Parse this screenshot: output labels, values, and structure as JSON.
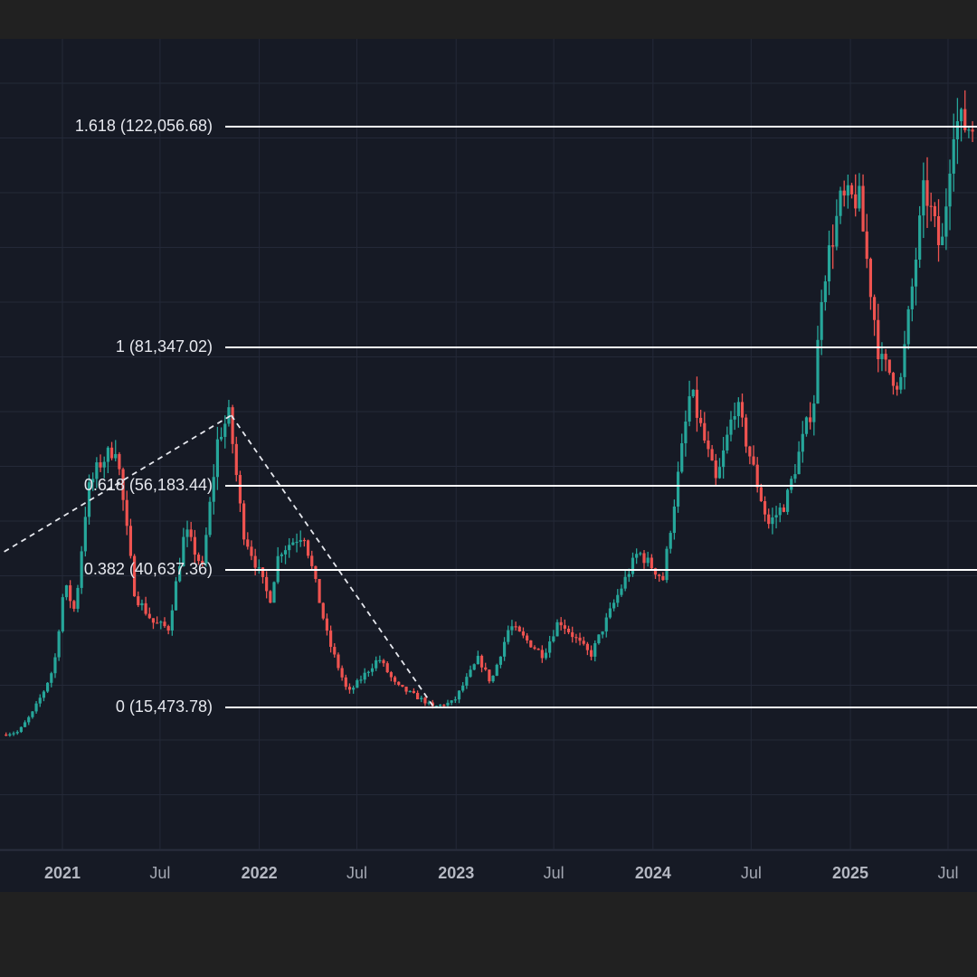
{
  "chart_data": {
    "type": "candlestick",
    "title": "",
    "xlabel": "",
    "ylabel": "",
    "x_range": [
      "2020-09-15",
      "2025-08-15"
    ],
    "y_range_approx": [
      6000,
      140000
    ],
    "grid": true,
    "colors": {
      "up": "#26a69a",
      "down": "#ef5350",
      "background": "#161a25",
      "fib_line": "#ffffff",
      "grid": "#242938"
    },
    "x_ticks": [
      {
        "label": "2021",
        "date": "2021-01-01",
        "major": true
      },
      {
        "label": "Jul",
        "date": "2021-07-01",
        "major": false
      },
      {
        "label": "2022",
        "date": "2022-01-01",
        "major": true
      },
      {
        "label": "Jul",
        "date": "2022-07-01",
        "major": false
      },
      {
        "label": "2023",
        "date": "2023-01-01",
        "major": true
      },
      {
        "label": "Jul",
        "date": "2023-07-01",
        "major": false
      },
      {
        "label": "2024",
        "date": "2024-01-01",
        "major": true
      },
      {
        "label": "Jul",
        "date": "2024-07-01",
        "major": false
      },
      {
        "label": "2025",
        "date": "2025-01-01",
        "major": true
      },
      {
        "label": "Jul",
        "date": "2025-07-01",
        "major": false
      }
    ],
    "fib_levels": [
      {
        "label": "1.618 (122,056.68)",
        "level": 1.618,
        "price": 122056.68
      },
      {
        "label": "1 (81,347.02)",
        "level": 1,
        "price": 81347.02
      },
      {
        "label": "0.618 (56,183.44)",
        "level": 0.618,
        "price": 56183.44
      },
      {
        "label": "0.382 (40,637.36)",
        "level": 0.382,
        "price": 40637.36
      },
      {
        "label": "0 (15,473.78)",
        "level": 0,
        "price": 15473.78
      }
    ],
    "trend_lines": [
      {
        "from": {
          "date": "2020-09-15",
          "price": 44000
        },
        "to": {
          "date": "2021-11-10",
          "price": 69000
        }
      },
      {
        "from": {
          "date": "2021-11-10",
          "price": 69000
        },
        "to": {
          "date": "2022-11-21",
          "price": 15473.78
        }
      }
    ],
    "price_path": [
      [
        "2020-09-15",
        10500
      ],
      [
        "2020-10-15",
        11000
      ],
      [
        "2020-11-10",
        14500
      ],
      [
        "2020-12-01",
        18500
      ],
      [
        "2020-12-20",
        23000
      ],
      [
        "2021-01-08",
        38000
      ],
      [
        "2021-01-28",
        33000
      ],
      [
        "2021-02-20",
        55000
      ],
      [
        "2021-03-13",
        60000
      ],
      [
        "2021-04-14",
        63500
      ],
      [
        "2021-05-19",
        36000
      ],
      [
        "2021-06-22",
        31000
      ],
      [
        "2021-07-20",
        30000
      ],
      [
        "2021-08-20",
        48000
      ],
      [
        "2021-09-21",
        41000
      ],
      [
        "2021-10-20",
        65000
      ],
      [
        "2021-11-10",
        69000
      ],
      [
        "2021-12-05",
        48000
      ],
      [
        "2022-01-24",
        35000
      ],
      [
        "2022-02-10",
        44000
      ],
      [
        "2022-03-28",
        47500
      ],
      [
        "2022-05-12",
        28000
      ],
      [
        "2022-06-18",
        18000
      ],
      [
        "2022-08-14",
        24500
      ],
      [
        "2022-09-15",
        19500
      ],
      [
        "2022-11-09",
        16500
      ],
      [
        "2022-11-21",
        15473.78
      ],
      [
        "2022-12-31",
        16500
      ],
      [
        "2023-02-15",
        24500
      ],
      [
        "2023-03-10",
        20000
      ],
      [
        "2023-04-14",
        30500
      ],
      [
        "2023-06-15",
        25000
      ],
      [
        "2023-07-14",
        31500
      ],
      [
        "2023-09-11",
        25000
      ],
      [
        "2023-10-24",
        34500
      ],
      [
        "2023-12-08",
        44000
      ],
      [
        "2024-01-23",
        39000
      ],
      [
        "2024-03-14",
        73500
      ],
      [
        "2024-05-01",
        56500
      ],
      [
        "2024-06-06",
        71500
      ],
      [
        "2024-08-05",
        49000
      ],
      [
        "2024-09-06",
        53000
      ],
      [
        "2024-10-29",
        72000
      ],
      [
        "2024-11-13",
        93000
      ],
      [
        "2024-12-17",
        108000
      ],
      [
        "2025-01-20",
        109000
      ],
      [
        "2025-02-28",
        79000
      ],
      [
        "2025-04-07",
        74500
      ],
      [
        "2025-05-22",
        111000
      ],
      [
        "2025-06-22",
        98500
      ],
      [
        "2025-07-14",
        123000
      ],
      [
        "2025-08-15",
        122000
      ]
    ]
  }
}
